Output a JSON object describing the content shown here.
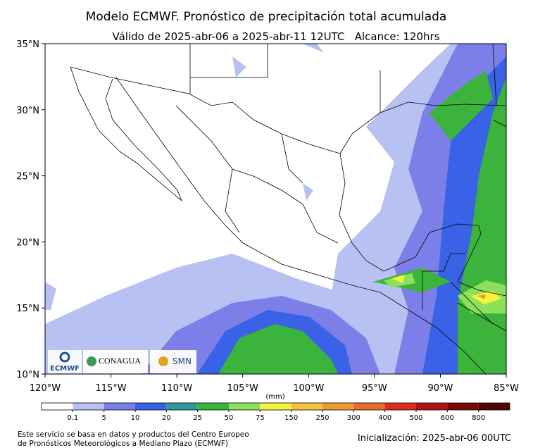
{
  "header": {
    "title": "Modelo ECMWF. Pronóstico de precipitación total acumulada",
    "subtitle": "Válido de 2025-abr-06 a 2025-abr-11 12UTC   Alcance: 120hrs"
  },
  "map": {
    "lat_labels": [
      "35°N",
      "30°N",
      "25°N",
      "20°N",
      "15°N",
      "10°N"
    ],
    "lon_labels": [
      "120°W",
      "115°W",
      "110°W",
      "105°W",
      "100°W",
      "95°W",
      "90°W",
      "85°W"
    ],
    "logos": {
      "ecmwf": "ECMWF",
      "conagua": "CONAGUA",
      "smn": "SMN"
    }
  },
  "legend": {
    "unit": "(mm)",
    "labels": [
      "0.1",
      "5",
      "10",
      "20",
      "25",
      "50",
      "75",
      "150",
      "250",
      "300",
      "400",
      "500",
      "600",
      "800"
    ],
    "colors": [
      "#ffffff",
      "#b8c2f2",
      "#7c7fe8",
      "#3a62e6",
      "#2f9a9c",
      "#3cb43c",
      "#8ee05a",
      "#f4f43c",
      "#f4c440",
      "#f09a34",
      "#ea6a2c",
      "#e02a1e",
      "#b01010",
      "#7a0808",
      "#500404"
    ]
  },
  "footer": {
    "note": [
      "Este servicio se basa en datos y productos del Centro Europeo",
      "de Pronósticos Meteorológicos a Mediano Plazo (ECMWF)"
    ],
    "init": "Inicialización: 2025-abr-06 00UTC"
  }
}
